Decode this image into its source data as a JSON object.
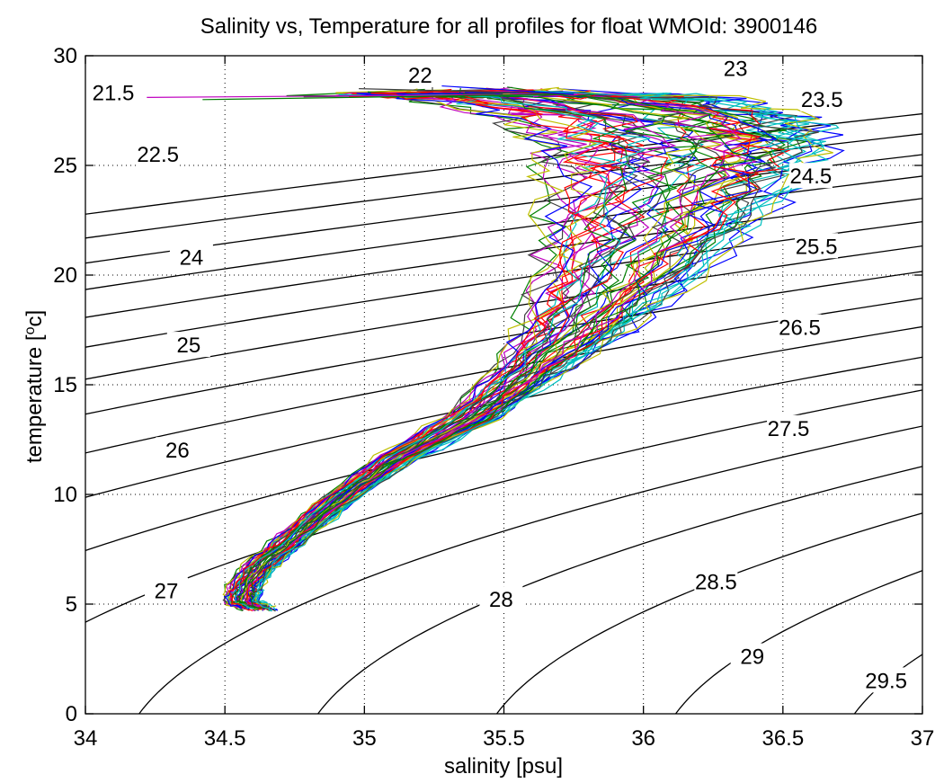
{
  "chart_data": {
    "type": "line",
    "title": "Salinity vs, Temperature for all profiles for float WMOId: 3900146",
    "xlabel": "salinity [psu]",
    "ylabel_main": "temperature [",
    "ylabel_sup": "o",
    "ylabel_tail": "c]",
    "xlim": [
      34,
      37
    ],
    "ylim": [
      0,
      30
    ],
    "xticks": [
      34,
      34.5,
      35,
      35.5,
      36,
      36.5,
      37
    ],
    "xtick_labels": [
      "34",
      "34.5",
      "35",
      "35.5",
      "36",
      "36.5",
      "37"
    ],
    "yticks": [
      0,
      5,
      10,
      15,
      20,
      25,
      30
    ],
    "ytick_labels": [
      "0",
      "5",
      "10",
      "15",
      "20",
      "25",
      "30"
    ],
    "grid": true,
    "density_contours": {
      "levels": [
        21.5,
        22,
        22.5,
        23,
        23.5,
        24,
        24.5,
        25,
        25.5,
        26,
        26.5,
        27,
        27.5,
        28,
        28.5,
        29,
        29.5
      ],
      "labels": [
        {
          "text": "21.5",
          "x": 34.1,
          "y": 28.3
        },
        {
          "text": "22",
          "x": 35.2,
          "y": 29.1
        },
        {
          "text": "22.5",
          "x": 34.26,
          "y": 25.5
        },
        {
          "text": "23",
          "x": 36.33,
          "y": 29.4
        },
        {
          "text": "23.5",
          "x": 36.64,
          "y": 28.0
        },
        {
          "text": "24",
          "x": 34.38,
          "y": 20.8
        },
        {
          "text": "24.5",
          "x": 36.6,
          "y": 24.5
        },
        {
          "text": "25",
          "x": 34.37,
          "y": 16.8
        },
        {
          "text": "25.5",
          "x": 36.62,
          "y": 21.3
        },
        {
          "text": "26",
          "x": 34.33,
          "y": 12.0
        },
        {
          "text": "26.5",
          "x": 36.56,
          "y": 17.6
        },
        {
          "text": "27",
          "x": 34.29,
          "y": 5.6
        },
        {
          "text": "27.5",
          "x": 36.52,
          "y": 13.0
        },
        {
          "text": "28",
          "x": 35.49,
          "y": 5.2
        },
        {
          "text": "28.5",
          "x": 36.26,
          "y": 6.0
        },
        {
          "text": "29",
          "x": 36.39,
          "y": 2.6
        },
        {
          "text": "29.5",
          "x": 36.87,
          "y": 1.5
        }
      ]
    },
    "profiles": {
      "count": 60,
      "colors": [
        "#0000ff",
        "#008000",
        "#ff0000",
        "#00bfbf",
        "#bf00bf",
        "#bfbf00",
        "#404040"
      ],
      "mean_profile": [
        {
          "s": 34.62,
          "t": 4.8
        },
        {
          "s": 34.56,
          "t": 5.1
        },
        {
          "s": 34.57,
          "t": 5.8
        },
        {
          "s": 34.63,
          "t": 6.8
        },
        {
          "s": 34.75,
          "t": 8.1
        },
        {
          "s": 34.92,
          "t": 9.9
        },
        {
          "s": 35.12,
          "t": 11.7
        },
        {
          "s": 35.38,
          "t": 13.5
        },
        {
          "s": 35.56,
          "t": 15.3
        },
        {
          "s": 35.75,
          "t": 17.5
        },
        {
          "s": 35.9,
          "t": 19.8
        },
        {
          "s": 36.02,
          "t": 22.2
        },
        {
          "s": 36.12,
          "t": 24.5
        },
        {
          "s": 36.15,
          "t": 26.0
        },
        {
          "s": 36.05,
          "t": 27.2
        },
        {
          "s": 35.7,
          "t": 28.1
        },
        {
          "s": 35.3,
          "t": 28.3
        }
      ],
      "surface_outliers": [
        {
          "s": 34.22,
          "t": 28.1
        },
        {
          "s": 34.42,
          "t": 28.0
        },
        {
          "s": 34.98,
          "t": 28.5
        },
        {
          "s": 35.18,
          "t": 28.7
        }
      ]
    }
  }
}
